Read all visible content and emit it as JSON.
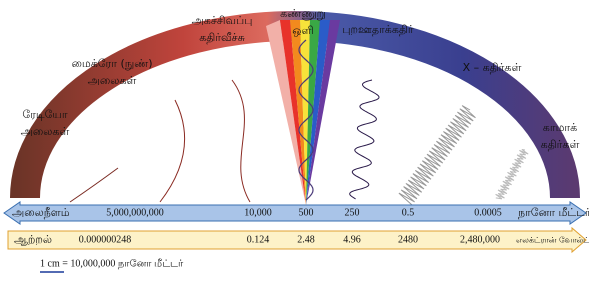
{
  "regions": [
    {
      "lines": [
        "ரேடியோ",
        "அலைகள்"
      ]
    },
    {
      "lines": [
        "மைக்ரோ (நுண்)",
        "அலைகள்"
      ]
    },
    {
      "lines": [
        "அகச்சிவப்பு",
        "கதிர்வீச்சு"
      ]
    },
    {
      "lines": [
        "கண்ணுறு",
        "ஒளி"
      ]
    },
    {
      "lines": [
        "புறஊதாக்கதிர்"
      ]
    },
    {
      "lines": [
        "X – கதிர்கள்"
      ]
    },
    {
      "lines": [
        "காமாக்",
        "கதிர்கள்"
      ]
    }
  ],
  "wavelength": {
    "label": "அலைநீளம்",
    "values": [
      "5,000,000,000",
      "10,000",
      "500",
      "250",
      "0.5",
      "0.0005"
    ],
    "unit": "நானோ மீட்டர்"
  },
  "energy": {
    "label": "ஆற்றல்",
    "values": [
      "0.000000248",
      "0.124",
      "2.48",
      "4.96",
      "2480",
      "2,480,000"
    ],
    "unit": "எலக்ட்ரான் வோல்ட்"
  },
  "scale": "1 cm = 10,000,000 நானோ மீட்டர்"
}
